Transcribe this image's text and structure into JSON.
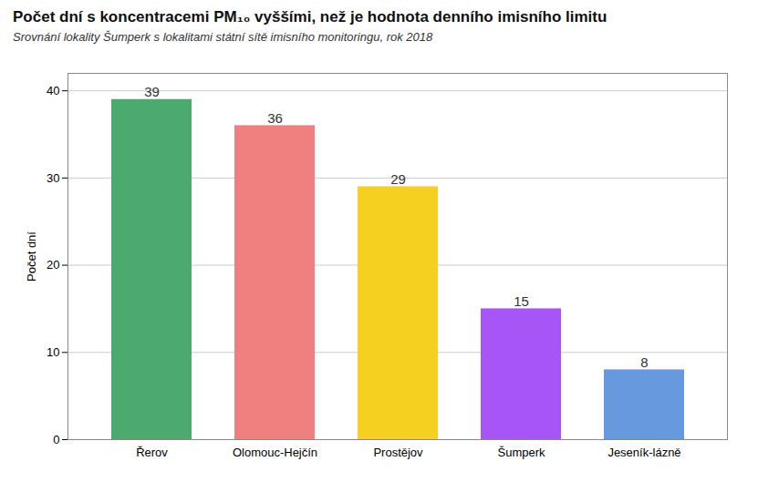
{
  "chart_data": {
    "type": "bar",
    "title": "Počet dní s koncentracemi PM₁₀ vyššími, než je hodnota denního imisního limitu",
    "subtitle": "Srovnání lokality Šumperk s lokalitami státní sítě imisního monitoringu, rok 2018",
    "categories": [
      "Řerov",
      "Olomouc-Hejčín",
      "Prostějov",
      "Šumperk",
      "Jeseník-lázně"
    ],
    "values": [
      39,
      36,
      29,
      15,
      8
    ],
    "colors": [
      "#4daa6e",
      "#f08080",
      "#f5d020",
      "#a855f7",
      "#6699dd"
    ],
    "ylabel": "Počet dní",
    "ylim": [
      0,
      42
    ],
    "yticks": [
      0,
      10,
      20,
      30,
      40
    ],
    "grid": true,
    "data_labels": true
  }
}
